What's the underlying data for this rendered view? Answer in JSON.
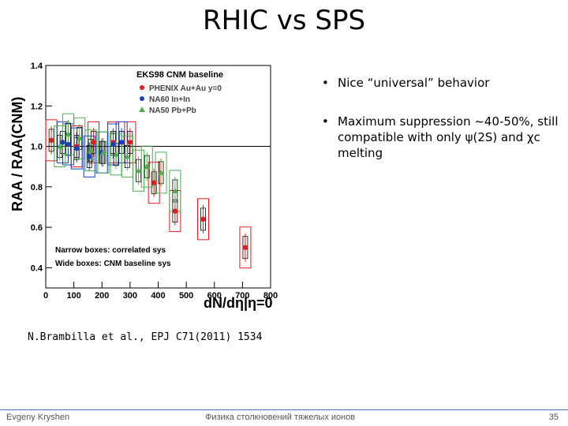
{
  "slide": {
    "title": "RHIC vs SPS",
    "bullets": [
      {
        "text": "Nice “universal” behavior"
      },
      {
        "text": "Maximum suppression ~40-50%, still compatible with only ψ(2S) and χc melting"
      }
    ],
    "citation": "N.Brambilla et al., EPJ C71(2011) 1534",
    "footer": {
      "author": "Evgeny Kryshen",
      "course": "Физика столкновений тяжелых ионов",
      "page": "35"
    }
  },
  "chart_data": {
    "type": "scatter",
    "ylabel": "RAA / RAA(CNM)",
    "xlabel": "dN/dη|η=0",
    "xlim": [
      0,
      800
    ],
    "ylim": [
      0.3,
      1.4
    ],
    "xticks": [
      0,
      100,
      200,
      300,
      400,
      500,
      600,
      700,
      800
    ],
    "yticks": [
      0.4,
      0.6,
      0.8,
      1.0,
      1.2,
      1.4
    ],
    "legend_title": "EKS98 CNM baseline",
    "legend": [
      {
        "label": "PHENIX Au+Au y=0",
        "color": "#e41a1c",
        "marker": "circle"
      },
      {
        "label": "NA60 In+In",
        "color": "#1f3fbf",
        "marker": "circle"
      },
      {
        "label": "NA50 Pb+Pb",
        "color": "#4caf50",
        "marker": "triangle"
      }
    ],
    "notes": [
      "Narrow boxes: correlated sys",
      "Wide boxes: CNM baseline sys"
    ],
    "series": [
      {
        "name": "PHENIX Au+Au y=0",
        "color": "#e41a1c",
        "points": [
          {
            "x": 20,
            "y": 1.03
          },
          {
            "x": 110,
            "y": 1.0
          },
          {
            "x": 170,
            "y": 1.02
          },
          {
            "x": 240,
            "y": 1.02
          },
          {
            "x": 300,
            "y": 1.02
          },
          {
            "x": 385,
            "y": 0.82
          },
          {
            "x": 460,
            "y": 0.68
          },
          {
            "x": 560,
            "y": 0.64
          },
          {
            "x": 710,
            "y": 0.5
          }
        ]
      },
      {
        "name": "NA60 In+In",
        "color": "#1f3fbf",
        "points": [
          {
            "x": 60,
            "y": 1.02
          },
          {
            "x": 80,
            "y": 1.01
          },
          {
            "x": 110,
            "y": 0.99
          },
          {
            "x": 155,
            "y": 0.95
          },
          {
            "x": 200,
            "y": 0.97
          },
          {
            "x": 240,
            "y": 1.01
          },
          {
            "x": 270,
            "y": 1.02
          }
        ]
      },
      {
        "name": "NA50 Pb+Pb",
        "color": "#4caf50",
        "points": [
          {
            "x": 50,
            "y": 1.0
          },
          {
            "x": 80,
            "y": 1.06
          },
          {
            "x": 120,
            "y": 1.04
          },
          {
            "x": 160,
            "y": 0.98
          },
          {
            "x": 205,
            "y": 0.97
          },
          {
            "x": 250,
            "y": 0.96
          },
          {
            "x": 290,
            "y": 0.95
          },
          {
            "x": 330,
            "y": 0.88
          },
          {
            "x": 360,
            "y": 0.9
          },
          {
            "x": 410,
            "y": 0.87
          },
          {
            "x": 460,
            "y": 0.78
          }
        ]
      }
    ]
  }
}
